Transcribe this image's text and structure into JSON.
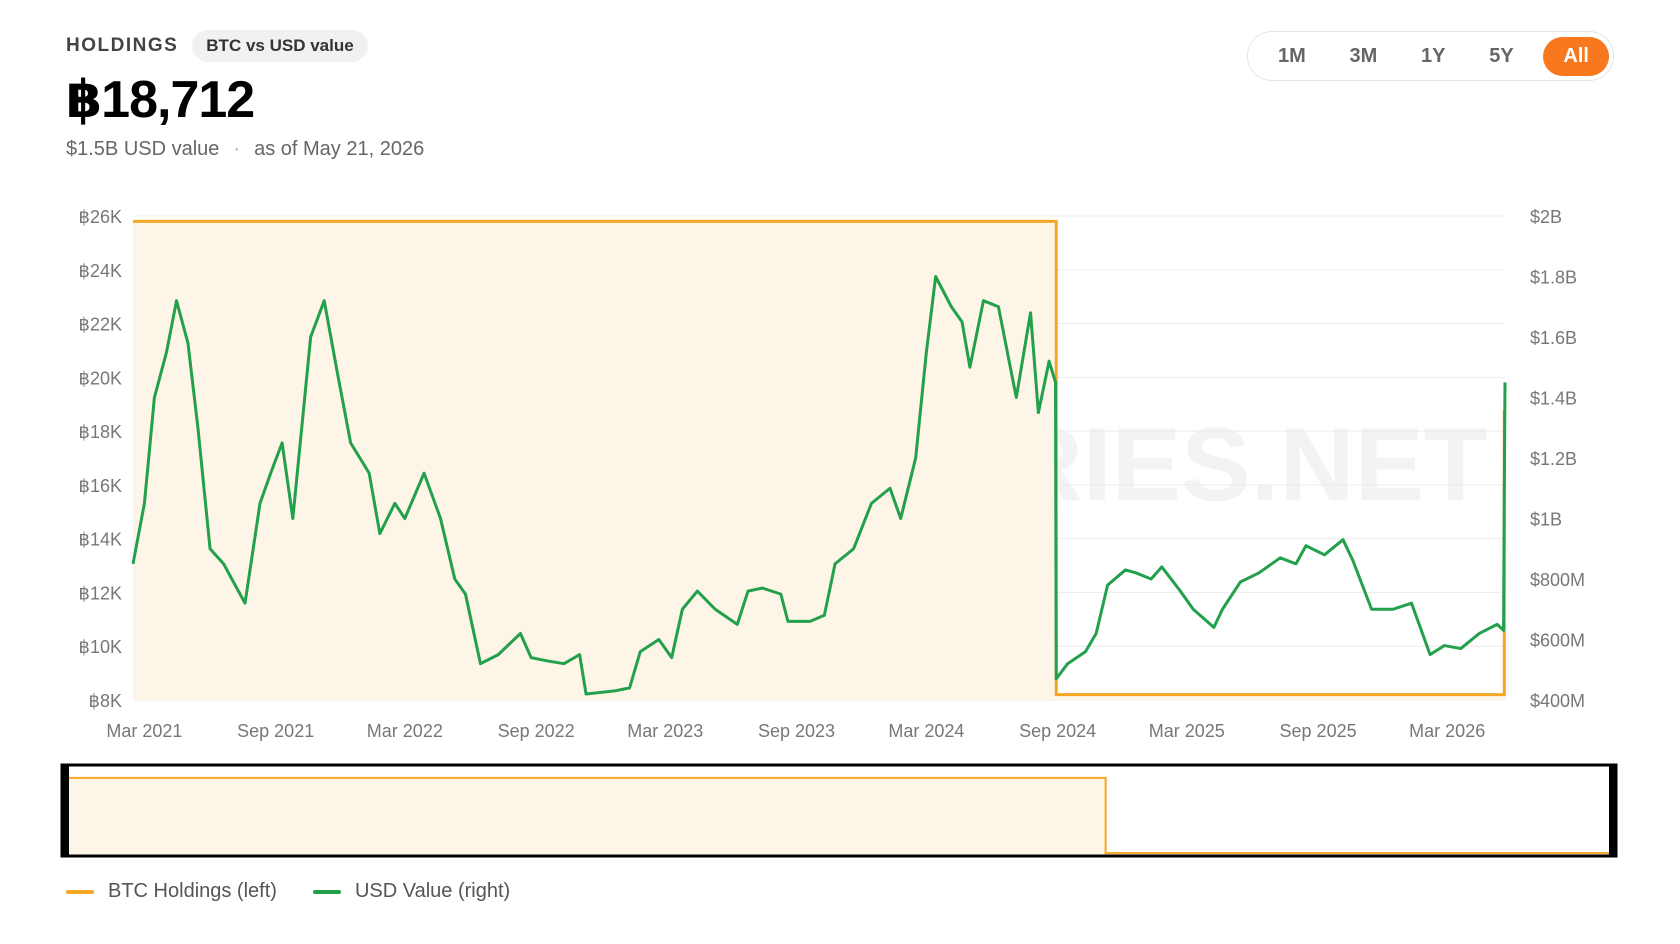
{
  "header": {
    "label": "HOLDINGS",
    "pill": "BTC vs USD value",
    "big_value": "฿18,712",
    "usd_value": "$1.5B USD value",
    "separator": "·",
    "as_of": "as of May 21, 2026"
  },
  "range_buttons": [
    {
      "label": "1M",
      "active": false
    },
    {
      "label": "3M",
      "active": false
    },
    {
      "label": "1Y",
      "active": false
    },
    {
      "label": "5Y",
      "active": false
    },
    {
      "label": "All",
      "active": true
    }
  ],
  "watermark": "BITCOINTREASURIES.NET",
  "colors": {
    "btc_line": "#f5a623",
    "btc_fill": "#fdf5e7",
    "usd_line": "#22a04b",
    "accent": "#f7781d",
    "grid": "#ececec",
    "tick": "#777777"
  },
  "legend": [
    {
      "label": "BTC Holdings (left)",
      "color": "#f5a623"
    },
    {
      "label": "USD Value (right)",
      "color": "#22a04b"
    }
  ],
  "chart_data": {
    "type": "line",
    "x_range": [
      "2021-02-13",
      "2026-05-21"
    ],
    "x_tick_labels": [
      "Mar 2021",
      "Sep 2021",
      "Mar 2022",
      "Sep 2022",
      "Mar 2023",
      "Sep 2023",
      "Mar 2024",
      "Sep 2024",
      "Mar 2025",
      "Sep 2025",
      "Mar 2026"
    ],
    "x_tick_dates": [
      "2021-03-01",
      "2021-09-01",
      "2022-03-01",
      "2022-09-01",
      "2023-03-01",
      "2023-09-01",
      "2024-03-01",
      "2024-09-01",
      "2025-03-01",
      "2025-09-01",
      "2026-03-01"
    ],
    "y_left": {
      "ylim": [
        8000,
        26000
      ],
      "tick_values": [
        8000,
        10000,
        12000,
        14000,
        16000,
        18000,
        20000,
        22000,
        24000,
        26000
      ],
      "tick_labels": [
        "฿8K",
        "฿10K",
        "฿12K",
        "฿14K",
        "฿16K",
        "฿18K",
        "฿20K",
        "฿22K",
        "฿24K",
        "฿26K"
      ]
    },
    "y_right": {
      "ylim": [
        400000000,
        2000000000
      ],
      "tick_values": [
        400000000,
        600000000,
        800000000,
        1000000000,
        1200000000,
        1400000000,
        1600000000,
        1800000000,
        2000000000
      ],
      "tick_labels": [
        "$400M",
        "$600M",
        "$800M",
        "$1B",
        "$1.2B",
        "$1.4B",
        "$1.6B",
        "$1.8B",
        "$2B"
      ]
    },
    "series": [
      {
        "name": "BTC Holdings (left)",
        "axis": "left",
        "style": "step-area",
        "points": [
          [
            "2021-02-13",
            25800
          ],
          [
            "2024-08-30",
            25800
          ],
          [
            "2024-08-30",
            8200
          ],
          [
            "2026-05-20",
            8200
          ],
          [
            "2026-05-20",
            18712
          ],
          [
            "2026-05-21",
            18712
          ]
        ]
      },
      {
        "name": "USD Value (right)",
        "axis": "right",
        "style": "line",
        "points": [
          [
            "2021-02-13",
            850000000
          ],
          [
            "2021-03-01",
            1050000000
          ],
          [
            "2021-03-15",
            1400000000
          ],
          [
            "2021-04-01",
            1550000000
          ],
          [
            "2021-04-15",
            1720000000
          ],
          [
            "2021-05-01",
            1580000000
          ],
          [
            "2021-05-15",
            1300000000
          ],
          [
            "2021-06-01",
            900000000
          ],
          [
            "2021-06-20",
            850000000
          ],
          [
            "2021-07-20",
            720000000
          ],
          [
            "2021-08-10",
            1050000000
          ],
          [
            "2021-08-25",
            1150000000
          ],
          [
            "2021-09-10",
            1250000000
          ],
          [
            "2021-09-25",
            1000000000
          ],
          [
            "2021-10-20",
            1600000000
          ],
          [
            "2021-11-08",
            1720000000
          ],
          [
            "2021-11-25",
            1500000000
          ],
          [
            "2021-12-15",
            1250000000
          ],
          [
            "2022-01-10",
            1150000000
          ],
          [
            "2022-01-25",
            950000000
          ],
          [
            "2022-02-15",
            1050000000
          ],
          [
            "2022-03-01",
            1000000000
          ],
          [
            "2022-03-28",
            1150000000
          ],
          [
            "2022-04-20",
            1000000000
          ],
          [
            "2022-05-10",
            800000000
          ],
          [
            "2022-05-25",
            750000000
          ],
          [
            "2022-06-15",
            520000000
          ],
          [
            "2022-07-10",
            550000000
          ],
          [
            "2022-08-10",
            620000000
          ],
          [
            "2022-08-25",
            540000000
          ],
          [
            "2022-09-15",
            530000000
          ],
          [
            "2022-10-10",
            520000000
          ],
          [
            "2022-11-01",
            550000000
          ],
          [
            "2022-11-10",
            420000000
          ],
          [
            "2022-12-20",
            430000000
          ],
          [
            "2023-01-10",
            440000000
          ],
          [
            "2023-01-25",
            560000000
          ],
          [
            "2023-02-20",
            600000000
          ],
          [
            "2023-03-10",
            540000000
          ],
          [
            "2023-03-25",
            700000000
          ],
          [
            "2023-04-15",
            760000000
          ],
          [
            "2023-05-10",
            700000000
          ],
          [
            "2023-06-10",
            650000000
          ],
          [
            "2023-06-25",
            760000000
          ],
          [
            "2023-07-15",
            770000000
          ],
          [
            "2023-08-10",
            750000000
          ],
          [
            "2023-08-20",
            660000000
          ],
          [
            "2023-09-20",
            660000000
          ],
          [
            "2023-10-10",
            680000000
          ],
          [
            "2023-10-25",
            850000000
          ],
          [
            "2023-11-20",
            900000000
          ],
          [
            "2023-12-15",
            1050000000
          ],
          [
            "2024-01-10",
            1100000000
          ],
          [
            "2024-01-25",
            1000000000
          ],
          [
            "2024-02-15",
            1200000000
          ],
          [
            "2024-03-01",
            1550000000
          ],
          [
            "2024-03-14",
            1800000000
          ],
          [
            "2024-04-05",
            1700000000
          ],
          [
            "2024-04-20",
            1650000000
          ],
          [
            "2024-05-01",
            1500000000
          ],
          [
            "2024-05-20",
            1720000000
          ],
          [
            "2024-06-10",
            1700000000
          ],
          [
            "2024-07-05",
            1400000000
          ],
          [
            "2024-07-25",
            1680000000
          ],
          [
            "2024-08-05",
            1350000000
          ],
          [
            "2024-08-20",
            1520000000
          ],
          [
            "2024-08-29",
            1450000000
          ],
          [
            "2024-08-30",
            470000000
          ],
          [
            "2024-09-15",
            520000000
          ],
          [
            "2024-10-10",
            560000000
          ],
          [
            "2024-10-25",
            620000000
          ],
          [
            "2024-11-10",
            780000000
          ],
          [
            "2024-12-05",
            830000000
          ],
          [
            "2024-12-20",
            820000000
          ],
          [
            "2025-01-10",
            800000000
          ],
          [
            "2025-01-25",
            840000000
          ],
          [
            "2025-02-20",
            760000000
          ],
          [
            "2025-03-10",
            700000000
          ],
          [
            "2025-04-08",
            640000000
          ],
          [
            "2025-04-20",
            700000000
          ],
          [
            "2025-05-15",
            790000000
          ],
          [
            "2025-06-10",
            820000000
          ],
          [
            "2025-07-10",
            870000000
          ],
          [
            "2025-08-01",
            850000000
          ],
          [
            "2025-08-15",
            910000000
          ],
          [
            "2025-09-10",
            880000000
          ],
          [
            "2025-10-06",
            930000000
          ],
          [
            "2025-10-20",
            860000000
          ],
          [
            "2025-11-15",
            700000000
          ],
          [
            "2025-12-15",
            700000000
          ],
          [
            "2026-01-10",
            720000000
          ],
          [
            "2026-02-05",
            550000000
          ],
          [
            "2026-02-25",
            580000000
          ],
          [
            "2026-03-20",
            570000000
          ],
          [
            "2026-04-15",
            620000000
          ],
          [
            "2026-05-10",
            650000000
          ],
          [
            "2026-05-19",
            630000000
          ],
          [
            "2026-05-20",
            1100000000
          ],
          [
            "2026-05-21",
            1450000000
          ]
        ]
      }
    ]
  }
}
